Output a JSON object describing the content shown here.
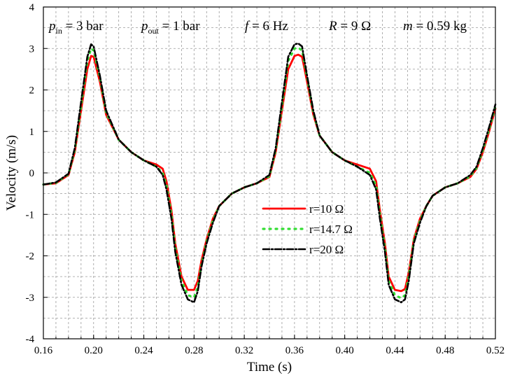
{
  "chart_data": {
    "type": "line",
    "title": "",
    "xlabel": "Time (s)",
    "ylabel": "Velocity (m/s)",
    "xlim": [
      0.16,
      0.52
    ],
    "ylim": [
      -4,
      4
    ],
    "xticks": [
      "0.16",
      "0.20",
      "0.24",
      "0.28",
      "0.32",
      "0.36",
      "0.40",
      "0.44",
      "0.48",
      "0.52"
    ],
    "yticks": [
      "-4",
      "-3",
      "-2",
      "-1",
      "0",
      "1",
      "2",
      "3",
      "4"
    ],
    "grid": true,
    "legend_position": "center-right",
    "annotations": [
      {
        "symbol": "p",
        "sub": "in",
        "rest": " = 3 bar"
      },
      {
        "symbol": "p",
        "sub": "out",
        "rest": " = 1 bar"
      },
      {
        "symbol": "f",
        "sub": "",
        "rest": " = 6 Hz"
      },
      {
        "symbol": "R",
        "sub": "",
        "rest": " = 9 Ω"
      },
      {
        "symbol": "m",
        "sub": "",
        "rest": " = 0.59 kg"
      }
    ],
    "series": [
      {
        "name": "r=10 Ω",
        "color": "#ff0000",
        "dash": "solid",
        "x": [
          0.16,
          0.17,
          0.18,
          0.185,
          0.19,
          0.195,
          0.198,
          0.2,
          0.205,
          0.21,
          0.22,
          0.23,
          0.24,
          0.25,
          0.255,
          0.258,
          0.262,
          0.265,
          0.27,
          0.275,
          0.28,
          0.283,
          0.286,
          0.29,
          0.295,
          0.3,
          0.31,
          0.32,
          0.33,
          0.34,
          0.345,
          0.35,
          0.355,
          0.36,
          0.363,
          0.366,
          0.37,
          0.375,
          0.38,
          0.39,
          0.4,
          0.41,
          0.42,
          0.425,
          0.428,
          0.432,
          0.435,
          0.44,
          0.445,
          0.448,
          0.451,
          0.455,
          0.46,
          0.465,
          0.47,
          0.48,
          0.49,
          0.5,
          0.505,
          0.51,
          0.515,
          0.52
        ],
        "y": [
          -0.28,
          -0.25,
          -0.05,
          0.5,
          1.5,
          2.5,
          2.82,
          2.8,
          2.2,
          1.4,
          0.8,
          0.5,
          0.3,
          0.2,
          0.1,
          -0.2,
          -0.9,
          -1.7,
          -2.5,
          -2.82,
          -2.82,
          -2.6,
          -2.1,
          -1.6,
          -1.1,
          -0.8,
          -0.5,
          -0.35,
          -0.25,
          -0.1,
          0.5,
          1.5,
          2.5,
          2.82,
          2.85,
          2.8,
          2.2,
          1.4,
          0.9,
          0.5,
          0.3,
          0.2,
          0.1,
          -0.2,
          -0.9,
          -1.7,
          -2.5,
          -2.82,
          -2.85,
          -2.8,
          -2.4,
          -1.6,
          -1.1,
          -0.8,
          -0.55,
          -0.35,
          -0.25,
          -0.1,
          0.1,
          0.5,
          1.0,
          1.55
        ]
      },
      {
        "name": "r=14.7 Ω",
        "color": "#33dd33",
        "dash": "dotted",
        "x": [
          0.16,
          0.17,
          0.18,
          0.185,
          0.19,
          0.195,
          0.198,
          0.2,
          0.205,
          0.21,
          0.22,
          0.23,
          0.24,
          0.25,
          0.255,
          0.258,
          0.262,
          0.265,
          0.27,
          0.275,
          0.28,
          0.283,
          0.286,
          0.29,
          0.295,
          0.3,
          0.31,
          0.32,
          0.33,
          0.34,
          0.345,
          0.35,
          0.355,
          0.36,
          0.363,
          0.366,
          0.37,
          0.375,
          0.38,
          0.39,
          0.4,
          0.41,
          0.42,
          0.425,
          0.428,
          0.432,
          0.435,
          0.44,
          0.445,
          0.448,
          0.451,
          0.455,
          0.46,
          0.465,
          0.47,
          0.48,
          0.49,
          0.5,
          0.505,
          0.51,
          0.515,
          0.52
        ],
        "y": [
          -0.28,
          -0.24,
          -0.03,
          0.55,
          1.6,
          2.7,
          3.0,
          2.95,
          2.3,
          1.45,
          0.8,
          0.5,
          0.3,
          0.15,
          0.0,
          -0.3,
          -1.0,
          -1.8,
          -2.6,
          -2.95,
          -3.0,
          -2.75,
          -2.2,
          -1.65,
          -1.15,
          -0.8,
          -0.5,
          -0.35,
          -0.25,
          -0.08,
          0.55,
          1.6,
          2.7,
          3.0,
          3.02,
          2.95,
          2.3,
          1.45,
          0.9,
          0.5,
          0.3,
          0.15,
          0.0,
          -0.3,
          -1.0,
          -1.8,
          -2.6,
          -2.95,
          -3.02,
          -2.95,
          -2.5,
          -1.65,
          -1.15,
          -0.8,
          -0.55,
          -0.35,
          -0.25,
          -0.08,
          0.12,
          0.55,
          1.05,
          1.6
        ]
      },
      {
        "name": "r=20 Ω",
        "color": "#000000",
        "dash": "dashdot",
        "x": [
          0.16,
          0.17,
          0.18,
          0.185,
          0.19,
          0.195,
          0.198,
          0.2,
          0.205,
          0.21,
          0.22,
          0.23,
          0.24,
          0.25,
          0.255,
          0.258,
          0.262,
          0.265,
          0.27,
          0.275,
          0.28,
          0.283,
          0.286,
          0.29,
          0.295,
          0.3,
          0.31,
          0.32,
          0.33,
          0.34,
          0.345,
          0.35,
          0.355,
          0.36,
          0.363,
          0.366,
          0.37,
          0.375,
          0.38,
          0.39,
          0.4,
          0.41,
          0.42,
          0.425,
          0.428,
          0.432,
          0.435,
          0.44,
          0.445,
          0.448,
          0.451,
          0.455,
          0.46,
          0.465,
          0.47,
          0.48,
          0.49,
          0.5,
          0.505,
          0.51,
          0.515,
          0.52
        ],
        "y": [
          -0.28,
          -0.23,
          -0.02,
          0.6,
          1.7,
          2.8,
          3.1,
          3.05,
          2.35,
          1.5,
          0.8,
          0.5,
          0.3,
          0.15,
          -0.05,
          -0.4,
          -1.1,
          -1.9,
          -2.7,
          -3.05,
          -3.12,
          -2.85,
          -2.25,
          -1.7,
          -1.2,
          -0.8,
          -0.5,
          -0.35,
          -0.25,
          -0.05,
          0.6,
          1.7,
          2.8,
          3.1,
          3.12,
          3.05,
          2.35,
          1.5,
          0.9,
          0.5,
          0.3,
          0.15,
          -0.05,
          -0.4,
          -1.1,
          -1.9,
          -2.7,
          -3.05,
          -3.12,
          -3.05,
          -2.6,
          -1.7,
          -1.2,
          -0.8,
          -0.55,
          -0.35,
          -0.25,
          -0.05,
          0.15,
          0.6,
          1.1,
          1.65
        ]
      }
    ]
  }
}
